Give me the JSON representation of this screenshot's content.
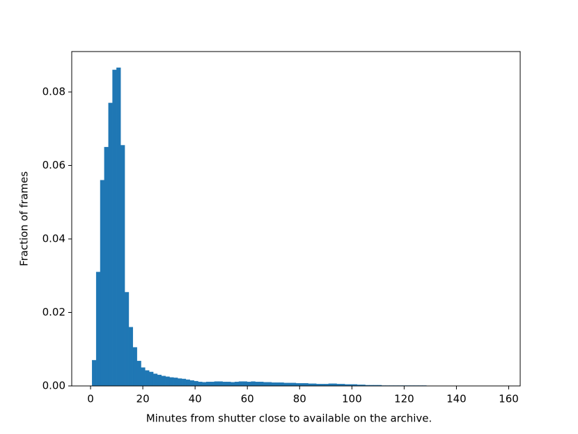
{
  "chart_data": {
    "type": "histogram",
    "xlabel": "Minutes from shutter close to available on the archive.",
    "ylabel": "Fraction of frames",
    "color": "#1f77b4",
    "bins": [
      0.6,
      2.16,
      3.72,
      5.28,
      6.84,
      8.4,
      9.96,
      11.52,
      13.08,
      14.64,
      16.2,
      17.76,
      19.32,
      20.88,
      22.44,
      24.0,
      25.56,
      27.12,
      28.68,
      30.24,
      31.8,
      33.36,
      34.92,
      36.48,
      38.04,
      39.6,
      41.16,
      42.72,
      44.28,
      45.84,
      47.4,
      48.96,
      50.52,
      52.08,
      53.64,
      55.2,
      56.76,
      58.32,
      59.88,
      61.44,
      63.0,
      64.56,
      66.12,
      67.68,
      69.24,
      70.8,
      72.36,
      73.92,
      75.48,
      77.04,
      78.6,
      80.16,
      81.72,
      83.28,
      84.84,
      86.4,
      87.96,
      89.52,
      91.08,
      92.64,
      94.2,
      95.76,
      97.32,
      98.88,
      100.44,
      102.0,
      103.56,
      105.12,
      106.68,
      108.24,
      109.8,
      111.36,
      112.92,
      114.48,
      116.04,
      117.6,
      119.16,
      120.72,
      122.28,
      123.84,
      125.4,
      126.96,
      128.52,
      130.08,
      131.64,
      133.2,
      134.76,
      136.32,
      137.88,
      139.44,
      141.0,
      142.56,
      144.12,
      145.68,
      147.24,
      148.8,
      150.36,
      151.92,
      153.48,
      155.04,
      156.6
    ],
    "values": [
      0.007,
      0.031,
      0.056,
      0.065,
      0.077,
      0.086,
      0.0866,
      0.0655,
      0.0255,
      0.016,
      0.0105,
      0.0068,
      0.005,
      0.0042,
      0.0038,
      0.0033,
      0.003,
      0.0027,
      0.0025,
      0.0023,
      0.0022,
      0.002,
      0.0019,
      0.0017,
      0.0015,
      0.0013,
      0.0011,
      0.001,
      0.0011,
      0.0011,
      0.0012,
      0.0012,
      0.0011,
      0.0011,
      0.001,
      0.0011,
      0.0012,
      0.0012,
      0.0011,
      0.0012,
      0.0011,
      0.0011,
      0.001,
      0.001,
      0.0009,
      0.0009,
      0.0009,
      0.0008,
      0.0008,
      0.0008,
      0.0007,
      0.0007,
      0.0007,
      0.0006,
      0.0006,
      0.0005,
      0.0005,
      0.0005,
      0.0006,
      0.0006,
      0.0005,
      0.0005,
      0.0004,
      0.0004,
      0.0004,
      0.0003,
      0.0003,
      0.0002,
      0.0002,
      0.0002,
      0.0002,
      0.0001,
      0.0001,
      0.0001,
      0.0001,
      0.0001,
      0.0001,
      0.0001,
      0.0001,
      0.0001,
      0.0001,
      0.0001,
      5e-05,
      5e-05,
      5e-05,
      5e-05,
      5e-05,
      5e-05,
      5e-05,
      5e-05,
      5e-05,
      5e-05,
      5e-05,
      5e-05,
      5e-05,
      5e-05,
      5e-05,
      0,
      0,
      5e-05
    ],
    "xlim": [
      -7.2,
      164.4
    ],
    "xticks": [
      0,
      20,
      40,
      60,
      80,
      100,
      120,
      140,
      160
    ],
    "ylim": [
      0,
      0.091
    ],
    "yticks": [
      {
        "value": 0,
        "label": "0.00"
      },
      {
        "value": 0.02,
        "label": "0.02"
      },
      {
        "value": 0.04,
        "label": "0.04"
      },
      {
        "value": 0.06,
        "label": "0.06"
      },
      {
        "value": 0.08,
        "label": "0.08"
      }
    ]
  }
}
